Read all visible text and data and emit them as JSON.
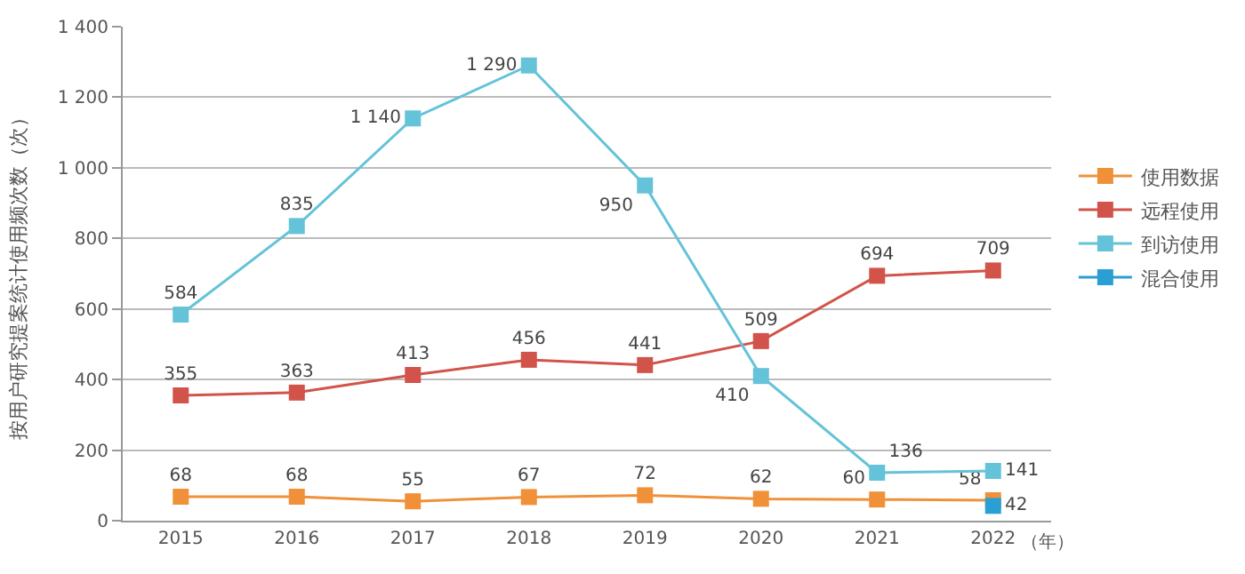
{
  "chart_data": {
    "type": "line",
    "xlabel": "（年）",
    "ylabel": "按用户研究提案统计使用频次数（次）",
    "categories": [
      "2015",
      "2016",
      "2017",
      "2018",
      "2019",
      "2020",
      "2021",
      "2022"
    ],
    "series": [
      {
        "name": "使用数据",
        "color": "#f0913a",
        "values": [
          68,
          68,
          55,
          67,
          72,
          62,
          60,
          58
        ],
        "value_labels": [
          "68",
          "68",
          "55",
          "67",
          "72",
          "62",
          "60",
          "58"
        ]
      },
      {
        "name": "远程使用",
        "color": "#d2534a",
        "values": [
          355,
          363,
          413,
          456,
          441,
          509,
          694,
          709
        ],
        "value_labels": [
          "355",
          "363",
          "413",
          "456",
          "441",
          "509",
          "694",
          "709"
        ]
      },
      {
        "name": "到访使用",
        "color": "#64c3d8",
        "values": [
          584,
          835,
          1140,
          1290,
          950,
          410,
          136,
          141
        ],
        "value_labels": [
          "584",
          "835",
          "1 140",
          "1 290",
          "950",
          "410",
          "136",
          "141"
        ]
      },
      {
        "name": "混合使用",
        "color": "#2a9fd4",
        "values": [
          null,
          null,
          null,
          null,
          null,
          null,
          null,
          42
        ],
        "value_labels": [
          null,
          null,
          null,
          null,
          null,
          null,
          null,
          "42"
        ]
      }
    ],
    "ylim": [
      0,
      1400
    ],
    "yticks": [
      0,
      200,
      400,
      600,
      800,
      {
        "value": 1000,
        "label": "1 000"
      },
      {
        "value": 1200,
        "label": "1 200"
      },
      {
        "value": 1400,
        "label": "1 400"
      }
    ],
    "grid": "y",
    "legend": "right",
    "marker": "square",
    "line_style": "solid"
  }
}
